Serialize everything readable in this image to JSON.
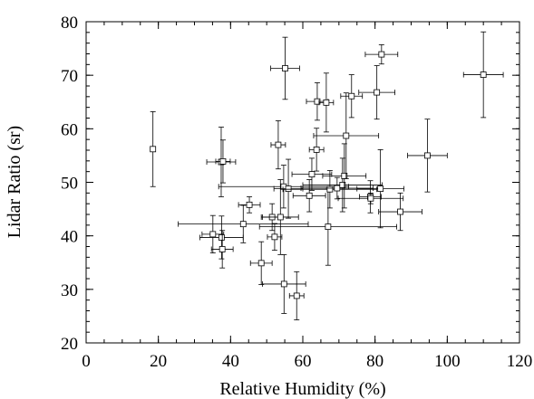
{
  "chart_data": {
    "type": "scatter",
    "title": "",
    "xlabel": "Relative Humidity (%)",
    "ylabel": "Lidar Ratio (sr)",
    "xlim": [
      0,
      120
    ],
    "ylim": [
      20,
      80
    ],
    "x_ticks": [
      0,
      20,
      40,
      60,
      80,
      100,
      120
    ],
    "y_ticks": [
      20,
      30,
      40,
      50,
      60,
      70,
      80
    ],
    "x_minor_step": 5,
    "y_minor_step": 2,
    "grid": false,
    "legend": "none",
    "marker": "open-square",
    "points": [
      {
        "x": 18.5,
        "y": 56.2,
        "xerr": 0.0,
        "yerr": 7.0
      },
      {
        "x": 35.1,
        "y": 40.3,
        "xerr": 3.0,
        "yerr": 3.5
      },
      {
        "x": 37.4,
        "y": 53.8,
        "xerr": 4.0,
        "yerr": 6.5
      },
      {
        "x": 37.9,
        "y": 53.9,
        "xerr": 2.0,
        "yerr": 4.0
      },
      {
        "x": 37.5,
        "y": 39.7,
        "xerr": 6.0,
        "yerr": 4.0
      },
      {
        "x": 37.7,
        "y": 37.5,
        "xerr": 3.0,
        "yerr": 3.5
      },
      {
        "x": 43.5,
        "y": 42.2,
        "xerr": 18.0,
        "yerr": 3.5
      },
      {
        "x": 45.2,
        "y": 45.8,
        "xerr": 3.0,
        "yerr": 1.5
      },
      {
        "x": 48.5,
        "y": 34.9,
        "xerr": 3.0,
        "yerr": 4.0
      },
      {
        "x": 51.5,
        "y": 43.5,
        "xerr": 3.0,
        "yerr": 2.5
      },
      {
        "x": 52.2,
        "y": 39.8,
        "xerr": 2.0,
        "yerr": 2.5
      },
      {
        "x": 53.2,
        "y": 57.0,
        "xerr": 2.0,
        "yerr": 4.5
      },
      {
        "x": 53.8,
        "y": 43.5,
        "xerr": 5.0,
        "yerr": 7.0
      },
      {
        "x": 54.7,
        "y": 49.2,
        "xerr": 18.0,
        "yerr": 4.0
      },
      {
        "x": 54.8,
        "y": 31.0,
        "xerr": 6.0,
        "yerr": 5.5
      },
      {
        "x": 55.1,
        "y": 71.3,
        "xerr": 4.0,
        "yerr": 5.8
      },
      {
        "x": 56.0,
        "y": 48.8,
        "xerr": 4.0,
        "yerr": 5.5
      },
      {
        "x": 58.3,
        "y": 28.8,
        "xerr": 2.0,
        "yerr": 4.5
      },
      {
        "x": 61.8,
        "y": 47.5,
        "xerr": 4.5,
        "yerr": 3.0
      },
      {
        "x": 62.5,
        "y": 51.5,
        "xerr": 5.5,
        "yerr": 3.0
      },
      {
        "x": 63.8,
        "y": 56.1,
        "xerr": 2.0,
        "yerr": 4.0
      },
      {
        "x": 64.0,
        "y": 65.1,
        "xerr": 3.0,
        "yerr": 3.5
      },
      {
        "x": 66.5,
        "y": 64.9,
        "xerr": 2.0,
        "yerr": 5.5
      },
      {
        "x": 67.0,
        "y": 41.7,
        "xerr": 19.0,
        "yerr": 7.2
      },
      {
        "x": 67.5,
        "y": 48.7,
        "xerr": 13.0,
        "yerr": 3.5
      },
      {
        "x": 69.5,
        "y": 48.9,
        "xerr": 10.0,
        "yerr": 2.0
      },
      {
        "x": 71.0,
        "y": 49.5,
        "xerr": 11.0,
        "yerr": 5.0
      },
      {
        "x": 71.5,
        "y": 51.2,
        "xerr": 6.0,
        "yerr": 6.0
      },
      {
        "x": 72.0,
        "y": 58.7,
        "xerr": 9.0,
        "yerr": 8.0
      },
      {
        "x": 73.5,
        "y": 66.1,
        "xerr": 3.0,
        "yerr": 4.0
      },
      {
        "x": 78.7,
        "y": 47.3,
        "xerr": 3.0,
        "yerr": 3.0
      },
      {
        "x": 78.8,
        "y": 47.0,
        "xerr": 9.0,
        "yerr": 1.0
      },
      {
        "x": 80.5,
        "y": 66.8,
        "xerr": 5.0,
        "yerr": 5.0
      },
      {
        "x": 81.5,
        "y": 48.8,
        "xerr": 6.5,
        "yerr": 7.3
      },
      {
        "x": 81.8,
        "y": 73.9,
        "xerr": 4.5,
        "yerr": 1.8
      },
      {
        "x": 87.0,
        "y": 44.5,
        "xerr": 6.0,
        "yerr": 3.5
      },
      {
        "x": 94.5,
        "y": 55.0,
        "xerr": 5.5,
        "yerr": 6.8
      },
      {
        "x": 110.0,
        "y": 70.1,
        "xerr": 5.5,
        "yerr": 8.0
      }
    ]
  }
}
